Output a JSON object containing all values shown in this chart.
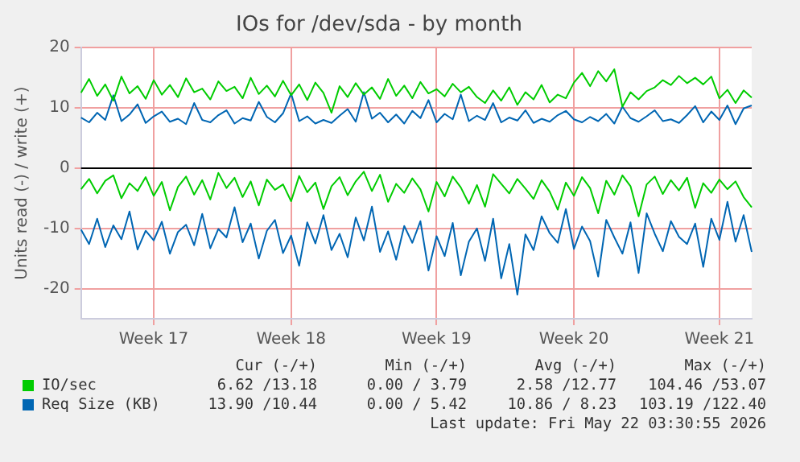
{
  "chart_data": {
    "type": "line",
    "title": "IOs for /dev/sda - by month",
    "ylabel": "Units read (-) / write (+)",
    "categories": [
      null,
      null,
      null,
      null,
      null,
      null,
      null,
      null,
      null,
      "Week 17",
      null,
      null,
      null,
      null,
      null,
      null,
      null,
      null,
      null,
      null,
      null,
      null,
      null,
      null,
      null,
      null,
      "Week 18",
      null,
      null,
      null,
      null,
      null,
      null,
      null,
      null,
      null,
      null,
      null,
      null,
      null,
      null,
      null,
      null,
      null,
      "Week 19",
      null,
      null,
      null,
      null,
      null,
      null,
      null,
      null,
      null,
      null,
      null,
      null,
      null,
      null,
      null,
      null,
      "Week 20",
      null,
      null,
      null,
      null,
      null,
      null,
      null,
      null,
      null,
      null,
      null,
      null,
      null,
      null,
      null,
      null,
      null,
      "Week 21",
      null,
      null,
      null,
      null
    ],
    "ylim": [
      -25,
      20
    ],
    "yticks": [
      -20,
      -10,
      0,
      10,
      20
    ],
    "grid": true,
    "legend": "bottom",
    "marker": "none",
    "ref_lines": [
      {
        "axis": "y",
        "value": 0,
        "label": null,
        "color": "#000000"
      }
    ],
    "series": [
      {
        "name": "IO/sec",
        "color": "#00cc00",
        "values": [
          12.5,
          14.8,
          12.0,
          13.9,
          11.2,
          15.2,
          12.4,
          13.6,
          11.5,
          14.6,
          12.2,
          13.8,
          11.8,
          14.9,
          12.6,
          13.2,
          11.4,
          14.4,
          12.8,
          13.5,
          11.6,
          15.0,
          12.3,
          13.7,
          11.9,
          14.5,
          12.1,
          13.9,
          11.3,
          14.2,
          12.5,
          9.2,
          13.6,
          11.8,
          14.1,
          12.2,
          13.4,
          11.5,
          14.8,
          12.0,
          13.7,
          11.6,
          14.3,
          12.4,
          13.1,
          11.9,
          14.0,
          12.6,
          13.5,
          11.8,
          10.8,
          12.9,
          11.2,
          13.4,
          10.5,
          12.6,
          11.4,
          13.8,
          10.9,
          12.2,
          11.6,
          14.2,
          15.8,
          13.6,
          16.1,
          14.4,
          16.4,
          10.2,
          12.6,
          11.4,
          12.8,
          13.4,
          14.6,
          13.8,
          15.3,
          14.1,
          15.0,
          13.9,
          15.2,
          11.6,
          13.0,
          10.8,
          12.9,
          11.7
        ]
      },
      {
        "color": "#00cc00",
        "values": [
          -3.5,
          -1.8,
          -4.2,
          -2.1,
          -1.2,
          -5.0,
          -2.5,
          -3.8,
          -1.5,
          -4.6,
          -2.3,
          -7.0,
          -3.1,
          -1.4,
          -4.4,
          -2.0,
          -5.2,
          -0.8,
          -3.3,
          -1.6,
          -4.8,
          -2.2,
          -6.2,
          -1.9,
          -3.6,
          -2.7,
          -5.5,
          -1.3,
          -4.0,
          -2.4,
          -6.8,
          -3.0,
          -1.5,
          -4.5,
          -2.2,
          -0.6,
          -3.8,
          -1.1,
          -5.6,
          -2.6,
          -4.1,
          -1.7,
          -3.5,
          -7.2,
          -2.3,
          -4.7,
          -1.4,
          -3.2,
          -5.9,
          -2.8,
          -6.4,
          -1.0,
          -2.6,
          -4.2,
          -1.8,
          -3.4,
          -5.1,
          -2.0,
          -3.9,
          -6.9,
          -2.4,
          -4.6,
          -1.5,
          -3.3,
          -7.5,
          -2.1,
          -4.4,
          -1.2,
          -3.0,
          -8.0,
          -2.7,
          -1.4,
          -4.3,
          -2.0,
          -3.7,
          -1.6,
          -6.6,
          -2.5,
          -4.1,
          -1.9,
          -3.5,
          -2.2,
          -4.8,
          -6.5
        ]
      },
      {
        "name": "Req Size (KB)",
        "color": "#0066b3",
        "values": [
          8.4,
          7.6,
          9.2,
          8.0,
          12.1,
          7.8,
          8.9,
          10.6,
          7.5,
          8.6,
          9.4,
          7.7,
          8.2,
          7.3,
          10.8,
          8.0,
          7.6,
          8.8,
          9.6,
          7.4,
          8.3,
          7.9,
          11.0,
          8.5,
          7.6,
          9.1,
          12.4,
          7.8,
          8.6,
          7.4,
          8.0,
          7.5,
          8.7,
          9.8,
          7.7,
          12.6,
          8.2,
          9.2,
          7.6,
          8.9,
          7.4,
          9.5,
          8.3,
          11.3,
          7.6,
          9.0,
          8.1,
          12.2,
          7.8,
          8.7,
          8.0,
          10.8,
          7.6,
          8.4,
          7.9,
          9.6,
          7.5,
          8.2,
          7.7,
          8.8,
          9.5,
          8.1,
          7.6,
          8.5,
          7.8,
          9.0,
          7.4,
          10.2,
          8.3,
          7.7,
          8.6,
          9.6,
          7.8,
          8.1,
          7.5,
          8.8,
          10.3,
          7.6,
          9.4,
          8.0,
          10.4,
          7.3,
          9.9,
          10.4
        ]
      },
      {
        "color": "#0066b3",
        "values": [
          -10.2,
          -12.6,
          -8.4,
          -13.1,
          -9.5,
          -11.8,
          -7.2,
          -13.5,
          -10.4,
          -12.0,
          -8.9,
          -14.2,
          -10.6,
          -9.4,
          -12.8,
          -7.6,
          -13.3,
          -10.1,
          -11.5,
          -6.5,
          -12.3,
          -9.2,
          -15.0,
          -10.4,
          -8.6,
          -14.1,
          -11.2,
          -16.2,
          -9.0,
          -12.5,
          -7.8,
          -13.6,
          -10.9,
          -14.8,
          -8.2,
          -12.0,
          -6.4,
          -13.9,
          -10.5,
          -15.2,
          -9.6,
          -12.4,
          -8.8,
          -17.0,
          -11.3,
          -14.6,
          -9.1,
          -17.8,
          -12.2,
          -10.0,
          -15.4,
          -8.4,
          -18.3,
          -12.6,
          -21.0,
          -11.0,
          -13.6,
          -8.0,
          -10.8,
          -12.4,
          -6.8,
          -13.4,
          -9.7,
          -12.1,
          -18.0,
          -8.6,
          -11.5,
          -14.2,
          -9.0,
          -17.4,
          -7.5,
          -10.9,
          -13.8,
          -8.8,
          -11.4,
          -12.6,
          -9.2,
          -16.4,
          -8.4,
          -11.9,
          -5.6,
          -12.2,
          -7.8,
          -13.9
        ]
      }
    ],
    "annotations": [
      "Cur (-/+)",
      "Min (-/+)",
      "Avg (-/+)",
      "Max (-/+)",
      "6.62 /13.18",
      "0.00 / 3.79",
      "2.58 /12.77",
      "104.46 /53.07",
      "13.90 /10.44",
      "0.00 / 5.42",
      "10.86 / 8.23",
      "103.19 /122.40",
      "Last update: Fri May 22 03:30:55 2026"
    ]
  }
}
